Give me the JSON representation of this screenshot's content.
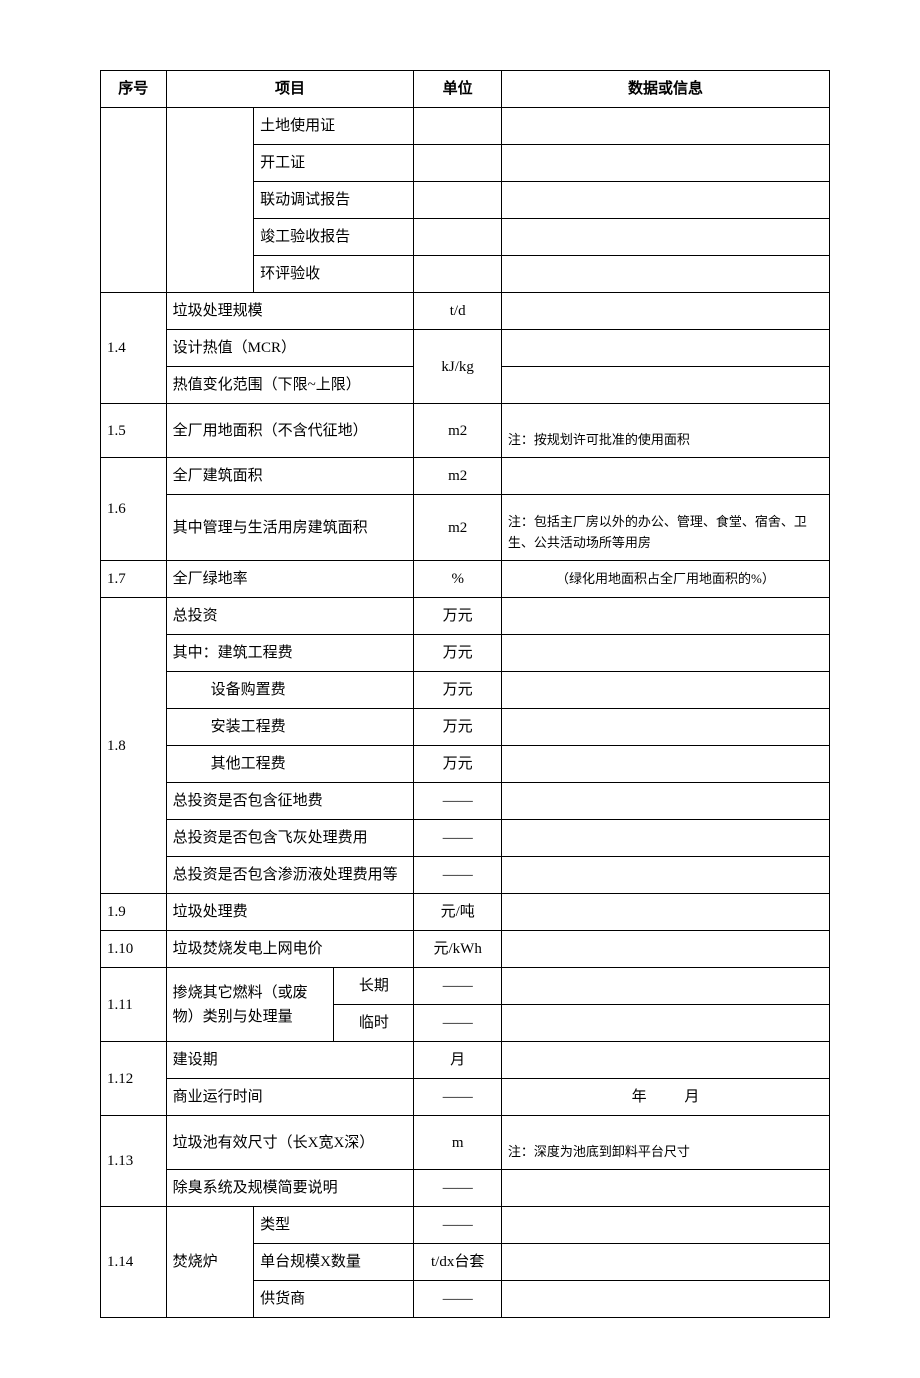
{
  "header": {
    "seq": "序号",
    "item": "项目",
    "unit": "单位",
    "data": "数据或信息"
  },
  "colors": {
    "border": "#000000",
    "background": "#ffffff",
    "text": "#000000"
  },
  "font": {
    "body_pt": 11,
    "note_pt": 10,
    "family": "SimSun"
  },
  "docs": {
    "r1": "土地使用证",
    "r2": "开工证",
    "r3": "联动调试报告",
    "r4": "竣工验收报告",
    "r5": "环评验收"
  },
  "r14": {
    "a_item": "垃圾处理规模",
    "a_unit": "t/d",
    "b_item": "设计热值（MCR）",
    "c_item": "热值变化范围（下限~上限）",
    "bc_unit": "kJ/kg",
    "seq": "1.4"
  },
  "r15": {
    "seq": "1.5",
    "item": "全厂用地面积（不含代征地）",
    "unit": "m2",
    "note": "注：按规划许可批准的使用面积"
  },
  "r16": {
    "seq": "1.6",
    "a_item": "全厂建筑面积",
    "a_unit": "m2",
    "b_item": "其中管理与生活用房建筑面积",
    "b_unit": "m2",
    "b_note": "注：包括主厂房以外的办公、管理、食堂、宿舍、卫生、公共活动场所等用房"
  },
  "r17": {
    "seq": "1.7",
    "item": "全厂绿地率",
    "unit": "%",
    "note": "（绿化用地面积占全厂用地面积的%）"
  },
  "r18": {
    "seq": "1.8",
    "a": {
      "item": "总投资",
      "unit": "万元"
    },
    "b": {
      "item": "其中：建筑工程费",
      "unit": "万元"
    },
    "c": {
      "item": "设备购置费",
      "unit": "万元"
    },
    "d": {
      "item": "安装工程费",
      "unit": "万元"
    },
    "e": {
      "item": "其他工程费",
      "unit": "万元"
    },
    "f": {
      "item": "总投资是否包含征地费",
      "unit": "——"
    },
    "g": {
      "item": "总投资是否包含飞灰处理费用",
      "unit": "——"
    },
    "h": {
      "item": "总投资是否包含渗沥液处理费用等",
      "unit": "——"
    }
  },
  "r19": {
    "seq": "1.9",
    "item": "垃圾处理费",
    "unit": "元/吨"
  },
  "r110": {
    "seq": "1.10",
    "item": "垃圾焚烧发电上网电价",
    "unit": "元/kWh"
  },
  "r111": {
    "seq": "1.11",
    "item": "掺烧其它燃料（或废物）类别与处理量",
    "sub1": "长期",
    "u1": "——",
    "sub2": "临时",
    "u2": "——"
  },
  "r112": {
    "seq": "1.12",
    "a_item": "建设期",
    "a_unit": "月",
    "b_item": "商业运行时间",
    "b_unit": "——",
    "b_data": "年 月"
  },
  "r113": {
    "seq": "1.13",
    "a_item": "垃圾池有效尺寸（长X宽X深）",
    "a_unit": "m",
    "a_note": "注：深度为池底到卸料平台尺寸",
    "b_item": "除臭系统及规模简要说明",
    "b_unit": "——"
  },
  "r114": {
    "seq": "1.14",
    "group": "焚烧炉",
    "a_item": "类型",
    "a_unit": "——",
    "b_item": "单台规模X数量",
    "b_unit": "t/dx台套",
    "c_item": "供货商",
    "c_unit": "——"
  }
}
